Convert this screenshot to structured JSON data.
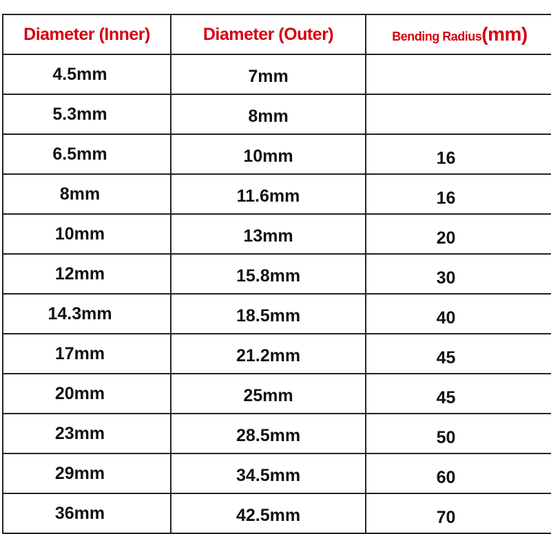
{
  "header": {
    "inner": "Diameter (Inner)",
    "outer": "Diameter (Outer)",
    "bending_label": "Bending Radius",
    "bending_unit": "(mm)"
  },
  "header_color": "#d40010",
  "rows": [
    {
      "inner": "4.5mm",
      "outer": "7mm",
      "radius": ""
    },
    {
      "inner": "5.3mm",
      "outer": "8mm",
      "radius": ""
    },
    {
      "inner": "6.5mm",
      "outer": "10mm",
      "radius": "16"
    },
    {
      "inner": "8mm",
      "outer": "11.6mm",
      "radius": "16"
    },
    {
      "inner": "10mm",
      "outer": "13mm",
      "radius": "20"
    },
    {
      "inner": "12mm",
      "outer": "15.8mm",
      "radius": "30"
    },
    {
      "inner": "14.3mm",
      "outer": "18.5mm",
      "radius": "40"
    },
    {
      "inner": "17mm",
      "outer": "21.2mm",
      "radius": "45"
    },
    {
      "inner": "20mm",
      "outer": "25mm",
      "radius": "45"
    },
    {
      "inner": "23mm",
      "outer": "28.5mm",
      "radius": "50"
    },
    {
      "inner": "29mm",
      "outer": "34.5mm",
      "radius": "60"
    },
    {
      "inner": "36mm",
      "outer": "42.5mm",
      "radius": "70"
    }
  ]
}
